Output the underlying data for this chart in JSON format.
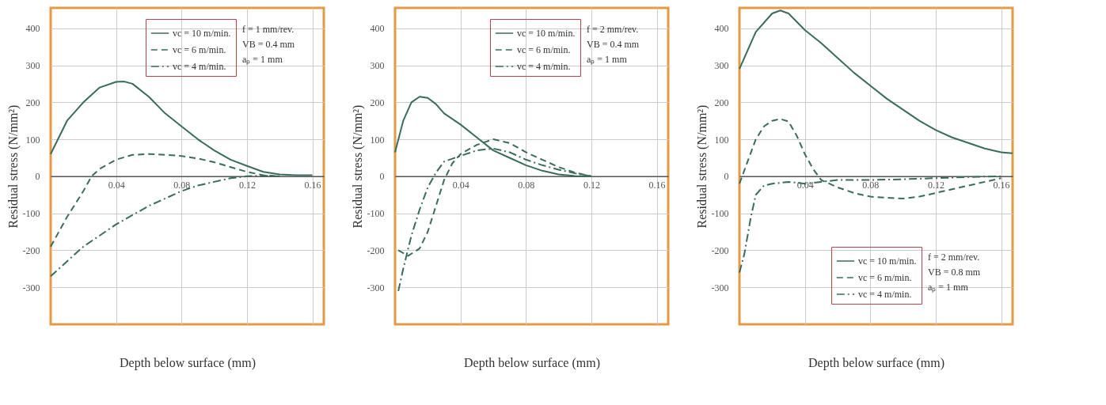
{
  "chart_data": [
    {
      "type": "line",
      "xlabel": "Depth below surface (mm)",
      "ylabel": "Residual stress (N/mm²)",
      "xlim": [
        0,
        0.167
      ],
      "ylim": [
        -400,
        455
      ],
      "xticks": [
        0.04,
        0.08,
        0.12,
        0.16
      ],
      "yticks": [
        -300,
        -200,
        -100,
        0,
        100,
        200,
        300,
        400
      ],
      "grid": true,
      "legend": "top right",
      "marker": "none",
      "annotations": [
        "f =  1 mm/rev.",
        "VB = 0.4 mm",
        "aₚ =  1 mm"
      ],
      "series": [
        {
          "name": "vc = 10 m/min.",
          "color": "#3b6b5c",
          "line_style": "solid",
          "x": [
            0,
            0.01,
            0.02,
            0.03,
            0.04,
            0.045,
            0.05,
            0.06,
            0.07,
            0.08,
            0.09,
            0.1,
            0.11,
            0.12,
            0.13,
            0.14,
            0.15,
            0.16
          ],
          "values": [
            60,
            150,
            200,
            240,
            255,
            256,
            250,
            215,
            170,
            135,
            100,
            70,
            45,
            28,
            12,
            5,
            3,
            3
          ]
        },
        {
          "name": "vc =  6 m/min.",
          "color": "#3b6b5c",
          "line_style": "dashed",
          "x": [
            0,
            0.01,
            0.02,
            0.025,
            0.03,
            0.04,
            0.05,
            0.06,
            0.07,
            0.08,
            0.09,
            0.1,
            0.11,
            0.12,
            0.13,
            0.14
          ],
          "values": [
            -190,
            -110,
            -40,
            0,
            20,
            45,
            58,
            60,
            58,
            55,
            48,
            38,
            25,
            12,
            3,
            0
          ]
        },
        {
          "name": "vc =  4 m/min.",
          "color": "#3b6b5c",
          "line_style": "dashdot",
          "x": [
            0,
            0.01,
            0.02,
            0.03,
            0.04,
            0.05,
            0.06,
            0.07,
            0.08,
            0.09,
            0.1,
            0.11,
            0.12,
            0.13,
            0.14
          ],
          "values": [
            -270,
            -230,
            -190,
            -160,
            -130,
            -105,
            -80,
            -60,
            -40,
            -25,
            -15,
            -5,
            0,
            2,
            0
          ]
        }
      ]
    },
    {
      "type": "line",
      "xlabel": "Depth below surface (mm)",
      "ylabel": "Residual stress (N/mm²)",
      "xlim": [
        0,
        0.167
      ],
      "ylim": [
        -400,
        455
      ],
      "xticks": [
        0.04,
        0.08,
        0.12,
        0.16
      ],
      "yticks": [
        -300,
        -200,
        -100,
        0,
        100,
        200,
        300,
        400
      ],
      "grid": true,
      "legend": "top right",
      "marker": "none",
      "annotations": [
        "f =  2 mm/rev.",
        "VB = 0.4 mm",
        "aₚ =  1 mm"
      ],
      "series": [
        {
          "name": "vc = 10 m/min.",
          "color": "#3b6b5c",
          "line_style": "solid",
          "x": [
            0,
            0.005,
            0.01,
            0.015,
            0.02,
            0.025,
            0.03,
            0.04,
            0.05,
            0.06,
            0.07,
            0.08,
            0.09,
            0.1,
            0.11,
            0.12
          ],
          "values": [
            65,
            150,
            200,
            215,
            212,
            195,
            170,
            140,
            105,
            70,
            50,
            30,
            15,
            5,
            1,
            0
          ]
        },
        {
          "name": "vc =  6 m/min.",
          "color": "#3b6b5c",
          "line_style": "dashed",
          "x": [
            0.002,
            0.008,
            0.015,
            0.02,
            0.025,
            0.03,
            0.035,
            0.04,
            0.05,
            0.06,
            0.07,
            0.08,
            0.09,
            0.1,
            0.11,
            0.12
          ],
          "values": [
            -200,
            -215,
            -195,
            -150,
            -80,
            -10,
            35,
            60,
            85,
            100,
            90,
            65,
            45,
            25,
            10,
            0
          ]
        },
        {
          "name": "vc =  4 m/min.",
          "color": "#3b6b5c",
          "line_style": "dashdot",
          "x": [
            0.002,
            0.005,
            0.01,
            0.015,
            0.02,
            0.025,
            0.03,
            0.04,
            0.05,
            0.06,
            0.07,
            0.08,
            0.09,
            0.1,
            0.11,
            0.12
          ],
          "values": [
            -310,
            -250,
            -160,
            -90,
            -30,
            10,
            40,
            55,
            70,
            75,
            65,
            45,
            30,
            18,
            8,
            0
          ]
        }
      ]
    },
    {
      "type": "line",
      "xlabel": "Depth below surface (mm)",
      "ylabel": "Residual stress (N/mm²)",
      "xlim": [
        0,
        0.167
      ],
      "ylim": [
        -400,
        455
      ],
      "xticks": [
        0.04,
        0.08,
        0.12,
        0.16
      ],
      "yticks": [
        -300,
        -200,
        -100,
        0,
        100,
        200,
        300,
        400
      ],
      "grid": true,
      "legend": "bottom right",
      "marker": "none",
      "annotations": [
        "f =  2 mm/rev.",
        "VB = 0.8 mm",
        "aₚ =  1 mm"
      ],
      "series": [
        {
          "name": "vc = 10 m/min.",
          "color": "#3b6b5c",
          "line_style": "solid",
          "x": [
            0,
            0.01,
            0.02,
            0.025,
            0.03,
            0.04,
            0.05,
            0.06,
            0.07,
            0.08,
            0.09,
            0.1,
            0.11,
            0.12,
            0.13,
            0.14,
            0.15,
            0.16,
            0.167
          ],
          "values": [
            290,
            390,
            440,
            448,
            440,
            395,
            360,
            320,
            280,
            245,
            210,
            180,
            150,
            125,
            105,
            90,
            75,
            65,
            62
          ]
        },
        {
          "name": "vc =  6 m/min.",
          "color": "#3b6b5c",
          "line_style": "dashed",
          "x": [
            0,
            0.005,
            0.01,
            0.015,
            0.02,
            0.025,
            0.03,
            0.035,
            0.04,
            0.045,
            0.05,
            0.06,
            0.07,
            0.08,
            0.09,
            0.1,
            0.11,
            0.12,
            0.13,
            0.14,
            0.15,
            0.16
          ],
          "values": [
            -20,
            40,
            100,
            135,
            150,
            155,
            148,
            110,
            60,
            20,
            -10,
            -30,
            -45,
            -55,
            -58,
            -60,
            -55,
            -45,
            -35,
            -25,
            -15,
            -5
          ]
        },
        {
          "name": "vc =  4 m/min.",
          "color": "#3b6b5c",
          "line_style": "dashdot",
          "x": [
            0,
            0.003,
            0.007,
            0.01,
            0.015,
            0.02,
            0.03,
            0.04,
            0.05,
            0.06,
            0.08,
            0.1,
            0.12,
            0.14,
            0.16
          ],
          "values": [
            -260,
            -210,
            -110,
            -50,
            -25,
            -20,
            -15,
            -20,
            -15,
            -10,
            -10,
            -8,
            -5,
            -2,
            0
          ]
        }
      ]
    }
  ]
}
